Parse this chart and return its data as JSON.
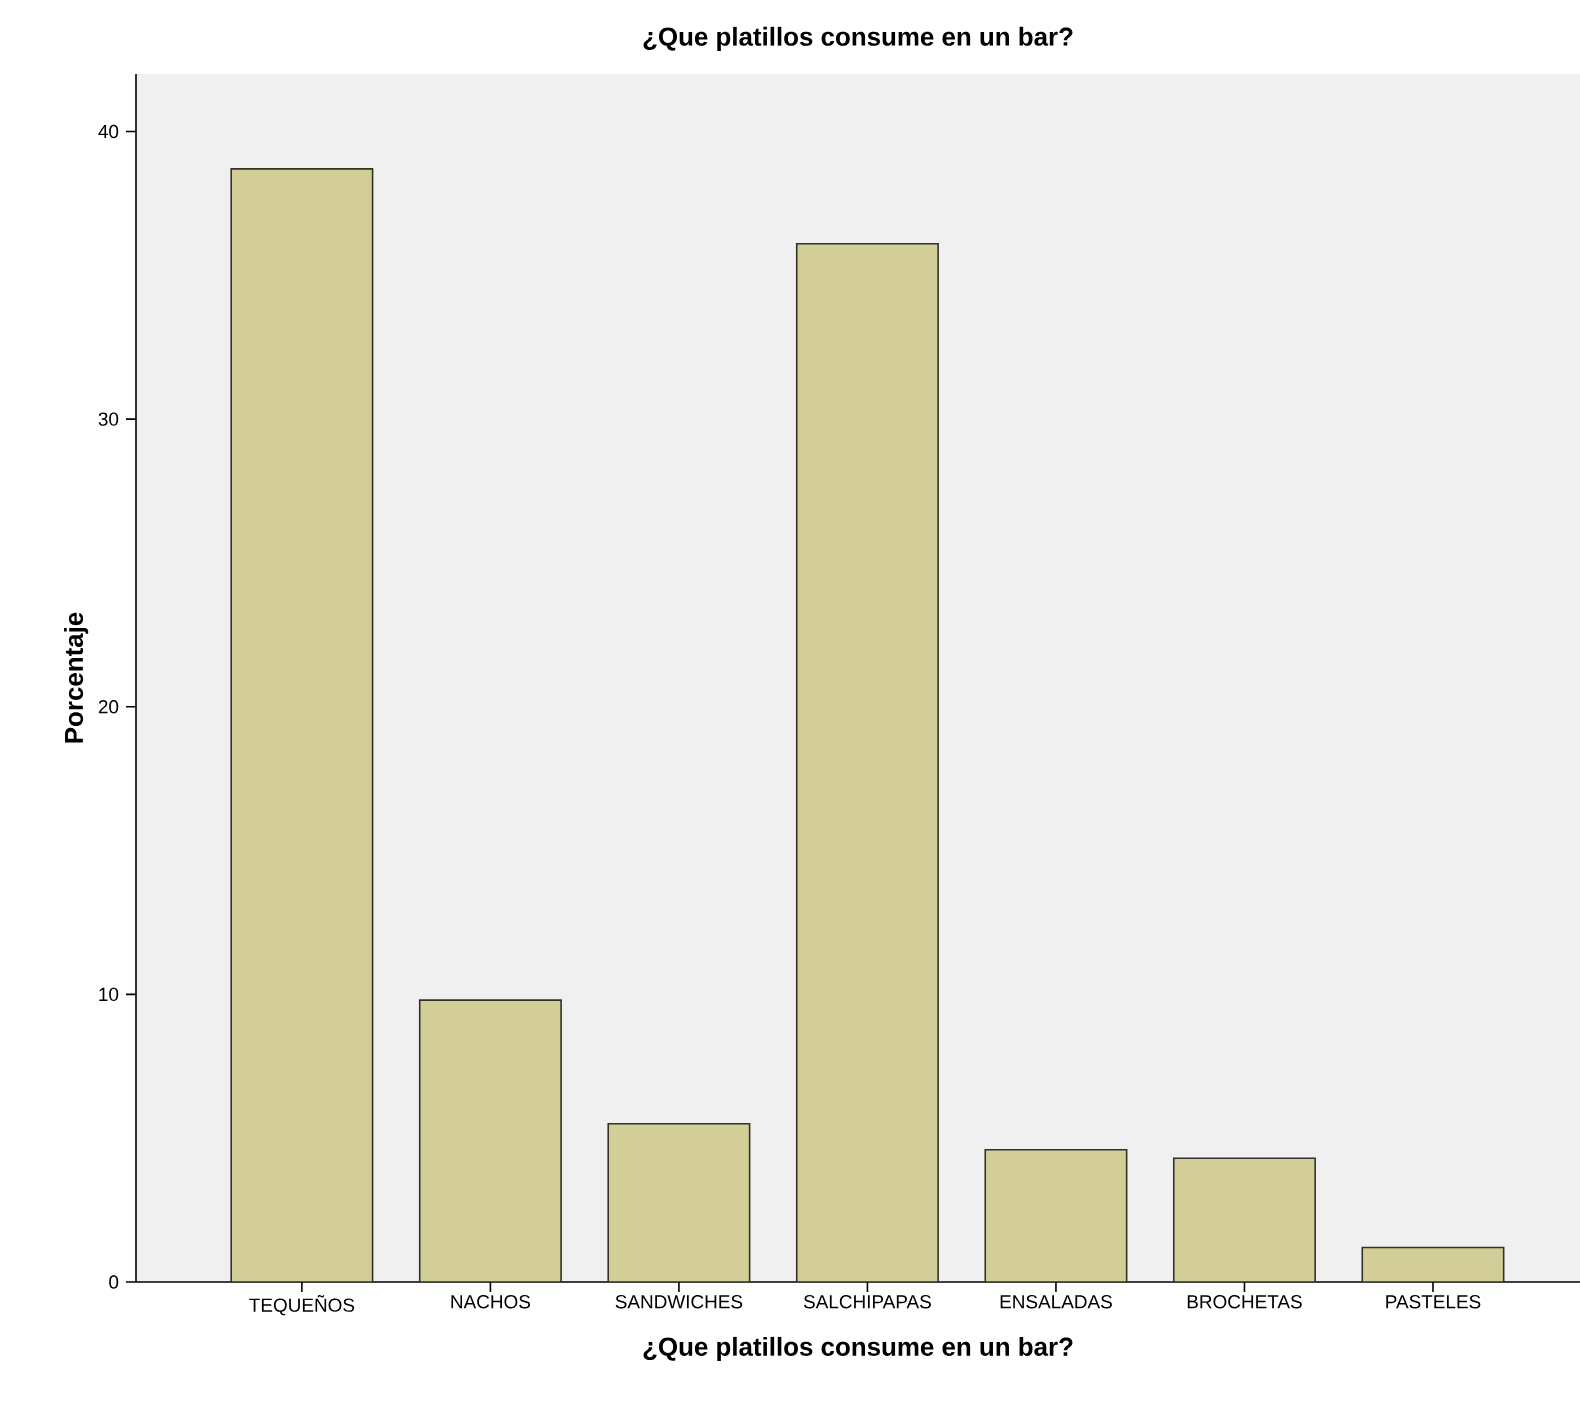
{
  "chart_data": {
    "type": "bar",
    "title": "¿Que platillos consume en un bar?",
    "xlabel": "¿Que platillos consume en un bar?",
    "ylabel": "Porcentaje",
    "categories": [
      "TEQUEÑOS",
      "NACHOS",
      "SANDWICHES",
      "SALCHIPAPAS",
      "ENSALADAS",
      "BROCHETAS",
      "PASTELES"
    ],
    "values": [
      38.7,
      9.8,
      5.5,
      36.1,
      4.6,
      4.3,
      1.2
    ],
    "color": "#d3ce97",
    "ylim": [
      0,
      42
    ],
    "yticks": [
      0,
      10,
      20,
      30,
      40
    ]
  }
}
